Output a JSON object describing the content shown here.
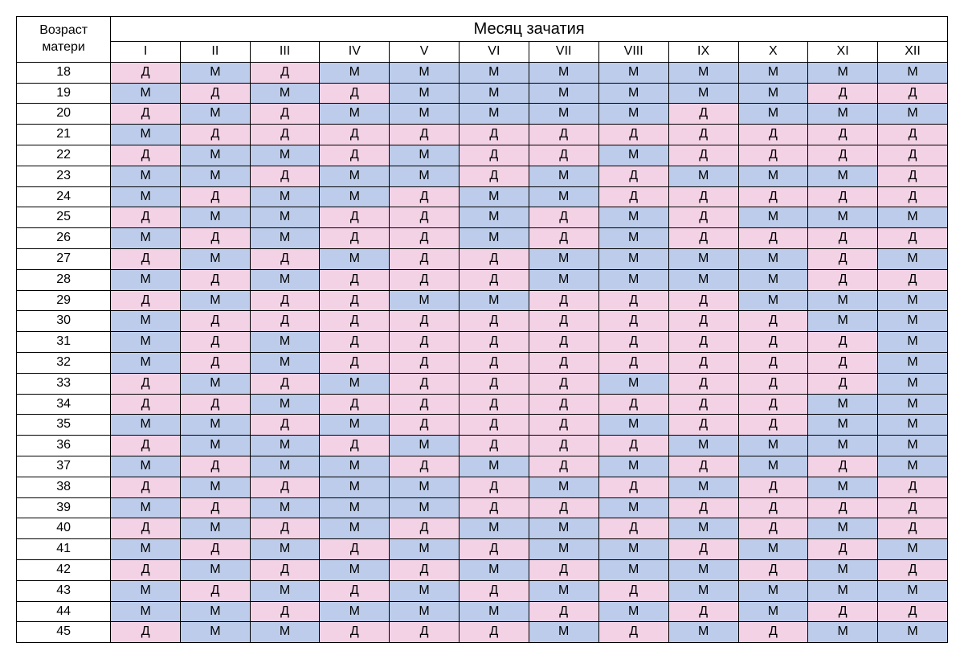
{
  "title": "Месяц зачатия",
  "row_header": "Возраст матери",
  "months": [
    "I",
    "II",
    "III",
    "IV",
    "V",
    "VI",
    "VII",
    "VIII",
    "IX",
    "X",
    "XI",
    "XII"
  ],
  "ages": [
    18,
    19,
    20,
    21,
    22,
    23,
    24,
    25,
    26,
    27,
    28,
    29,
    30,
    31,
    32,
    33,
    34,
    35,
    36,
    37,
    38,
    39,
    40,
    41,
    42,
    43,
    44,
    45
  ],
  "colors": {
    "Д": "#f4d2e6",
    "М": "#bcccea"
  },
  "data": {
    "18": [
      "Д",
      "М",
      "Д",
      "М",
      "М",
      "М",
      "М",
      "М",
      "М",
      "М",
      "М",
      "М"
    ],
    "19": [
      "М",
      "Д",
      "М",
      "Д",
      "М",
      "М",
      "М",
      "М",
      "М",
      "М",
      "Д",
      "Д"
    ],
    "20": [
      "Д",
      "М",
      "Д",
      "М",
      "М",
      "М",
      "М",
      "М",
      "Д",
      "М",
      "М",
      "М"
    ],
    "21": [
      "М",
      "Д",
      "Д",
      "Д",
      "Д",
      "Д",
      "Д",
      "Д",
      "Д",
      "Д",
      "Д",
      "Д"
    ],
    "22": [
      "Д",
      "М",
      "М",
      "Д",
      "М",
      "Д",
      "Д",
      "М",
      "Д",
      "Д",
      "Д",
      "Д"
    ],
    "23": [
      "М",
      "М",
      "Д",
      "М",
      "М",
      "Д",
      "М",
      "Д",
      "М",
      "М",
      "М",
      "Д"
    ],
    "24": [
      "М",
      "Д",
      "М",
      "М",
      "Д",
      "М",
      "М",
      "Д",
      "Д",
      "Д",
      "Д",
      "Д"
    ],
    "25": [
      "Д",
      "М",
      "М",
      "Д",
      "Д",
      "М",
      "Д",
      "М",
      "Д",
      "М",
      "М",
      "М"
    ],
    "26": [
      "М",
      "Д",
      "М",
      "Д",
      "Д",
      "М",
      "Д",
      "М",
      "Д",
      "Д",
      "Д",
      "Д"
    ],
    "27": [
      "Д",
      "М",
      "Д",
      "М",
      "Д",
      "Д",
      "М",
      "М",
      "М",
      "М",
      "Д",
      "М"
    ],
    "28": [
      "М",
      "Д",
      "М",
      "Д",
      "Д",
      "Д",
      "М",
      "М",
      "М",
      "М",
      "Д",
      "Д"
    ],
    "29": [
      "Д",
      "М",
      "Д",
      "Д",
      "М",
      "М",
      "Д",
      "Д",
      "Д",
      "М",
      "М",
      "М"
    ],
    "30": [
      "М",
      "Д",
      "Д",
      "Д",
      "Д",
      "Д",
      "Д",
      "Д",
      "Д",
      "Д",
      "М",
      "М"
    ],
    "31": [
      "М",
      "Д",
      "М",
      "Д",
      "Д",
      "Д",
      "Д",
      "Д",
      "Д",
      "Д",
      "Д",
      "М"
    ],
    "32": [
      "М",
      "Д",
      "М",
      "Д",
      "Д",
      "Д",
      "Д",
      "Д",
      "Д",
      "Д",
      "Д",
      "М"
    ],
    "33": [
      "Д",
      "М",
      "Д",
      "М",
      "Д",
      "Д",
      "Д",
      "М",
      "Д",
      "Д",
      "Д",
      "М"
    ],
    "34": [
      "Д",
      "Д",
      "М",
      "Д",
      "Д",
      "Д",
      "Д",
      "Д",
      "Д",
      "Д",
      "М",
      "М"
    ],
    "35": [
      "М",
      "М",
      "Д",
      "М",
      "Д",
      "Д",
      "Д",
      "М",
      "Д",
      "Д",
      "М",
      "М"
    ],
    "36": [
      "Д",
      "М",
      "М",
      "Д",
      "М",
      "Д",
      "Д",
      "Д",
      "М",
      "М",
      "М",
      "М"
    ],
    "37": [
      "М",
      "Д",
      "М",
      "М",
      "Д",
      "М",
      "Д",
      "М",
      "Д",
      "М",
      "Д",
      "М"
    ],
    "38": [
      "Д",
      "М",
      "Д",
      "М",
      "М",
      "Д",
      "М",
      "Д",
      "М",
      "Д",
      "М",
      "Д"
    ],
    "39": [
      "М",
      "Д",
      "М",
      "М",
      "М",
      "Д",
      "Д",
      "М",
      "Д",
      "Д",
      "Д",
      "Д"
    ],
    "40": [
      "Д",
      "М",
      "Д",
      "М",
      "Д",
      "М",
      "М",
      "Д",
      "М",
      "Д",
      "М",
      "Д"
    ],
    "41": [
      "М",
      "Д",
      "М",
      "Д",
      "М",
      "Д",
      "М",
      "М",
      "Д",
      "М",
      "Д",
      "М"
    ],
    "42": [
      "Д",
      "М",
      "Д",
      "М",
      "Д",
      "М",
      "Д",
      "М",
      "М",
      "Д",
      "М",
      "Д"
    ],
    "43": [
      "М",
      "Д",
      "М",
      "Д",
      "М",
      "Д",
      "М",
      "Д",
      "М",
      "М",
      "М",
      "М"
    ],
    "44": [
      "М",
      "М",
      "Д",
      "М",
      "М",
      "М",
      "Д",
      "М",
      "Д",
      "М",
      "Д",
      "Д"
    ],
    "45": [
      "Д",
      "М",
      "М",
      "Д",
      "Д",
      "Д",
      "М",
      "Д",
      "М",
      "Д",
      "М",
      "М"
    ]
  },
  "styling": {
    "border_color": "#000000",
    "background_color": "#ffffff",
    "title_fontsize": 20,
    "cell_fontsize": 16,
    "font_family": "Arial"
  }
}
